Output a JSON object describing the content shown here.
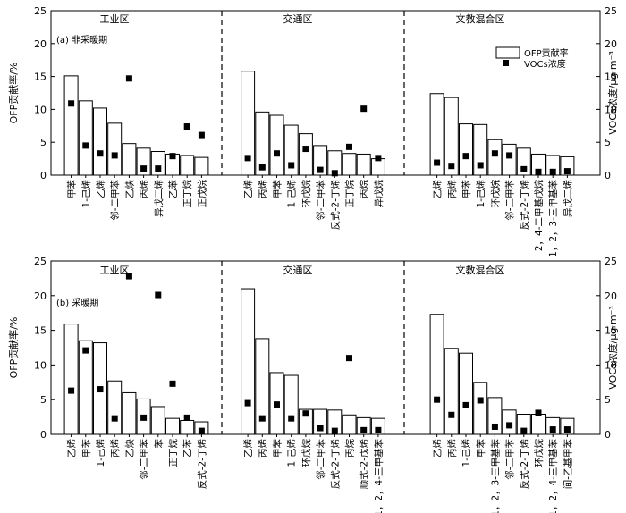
{
  "chart_data": [
    {
      "type": "bar",
      "panel_label": "(a) 非采暖期",
      "ylabel_left": "OFP贡献率/%",
      "ylabel_right": "VOCs浓度/μg·m⁻³",
      "ylim": [
        0,
        25
      ],
      "yticks": [
        0,
        5,
        10,
        15,
        20,
        25
      ],
      "legend": {
        "bar": "OFP贡献率",
        "marker": "VOCs浓度",
        "placement": "top-right"
      },
      "groups": [
        {
          "name": "工业区",
          "categories": [
            "甲苯",
            "1-己烯",
            "乙烯",
            "邻-二甲苯",
            "乙炔",
            "丙烯",
            "异戊二烯",
            "乙苯",
            "正丁烷",
            "正戊烷"
          ],
          "ofp": [
            15.1,
            11.3,
            10.2,
            7.9,
            4.8,
            4.1,
            3.6,
            3.2,
            3.0,
            2.7
          ],
          "conc": [
            10.9,
            4.5,
            3.3,
            3.0,
            14.7,
            1.0,
            1.0,
            2.9,
            7.4,
            6.1
          ]
        },
        {
          "name": "交通区",
          "categories": [
            "乙烯",
            "丙烯",
            "甲苯",
            "1-己烯",
            "环戊烷",
            "邻-二甲苯",
            "反式-2-丁烯",
            "正丁烷",
            "丙烷",
            "异戊烷"
          ],
          "ofp": [
            15.8,
            9.6,
            9.1,
            7.6,
            6.3,
            4.5,
            3.7,
            3.3,
            3.2,
            2.5
          ],
          "conc": [
            2.6,
            1.2,
            3.3,
            1.5,
            4.0,
            0.8,
            0.3,
            4.3,
            10.1,
            2.6
          ]
        },
        {
          "name": "文教混合区",
          "categories": [
            "乙烯",
            "丙烯",
            "甲苯",
            "1-己烯",
            "环戊烷",
            "邻-二甲苯",
            "反式-2-丁烯",
            "2，4-二甲基戊烷",
            "1，2，3-三甲基苯",
            "异戊二烯"
          ],
          "ofp": [
            12.4,
            11.8,
            7.8,
            7.7,
            5.4,
            4.7,
            4.1,
            3.2,
            3.0,
            2.8
          ],
          "conc": [
            1.9,
            1.4,
            2.9,
            1.5,
            3.3,
            3.0,
            0.9,
            0.5,
            0.5,
            0.6
          ]
        }
      ]
    },
    {
      "type": "bar",
      "panel_label": "(b) 采暖期",
      "ylabel_left": "OFP贡献率/%",
      "ylabel_right": "VOCs浓度/μg·m⁻³",
      "ylim": [
        0,
        25
      ],
      "yticks": [
        0,
        5,
        10,
        15,
        20,
        25
      ],
      "groups": [
        {
          "name": "工业区",
          "categories": [
            "乙烯",
            "甲苯",
            "1-己烯",
            "丙烯",
            "乙炔",
            "邻-二甲苯",
            "苯",
            "正丁烷",
            "乙苯",
            "反式-2-丁烯"
          ],
          "ofp": [
            15.9,
            13.5,
            13.2,
            7.7,
            6.0,
            5.1,
            4.0,
            2.3,
            2.0,
            1.8
          ],
          "conc": [
            6.3,
            12.1,
            6.5,
            2.3,
            22.8,
            2.4,
            20.1,
            7.3,
            2.4,
            0.5
          ]
        },
        {
          "name": "交通区",
          "categories": [
            "乙烯",
            "丙烯",
            "甲苯",
            "1-己烯",
            "环戊烷",
            "邻-二甲苯",
            "反式-2-丁烯",
            "丙烷",
            "顺式-2-戊烯",
            "1，2，4-三甲基苯"
          ],
          "ofp": [
            21.0,
            13.8,
            8.9,
            8.5,
            3.6,
            3.6,
            3.5,
            2.8,
            2.4,
            2.3
          ],
          "conc": [
            4.5,
            2.3,
            4.3,
            2.3,
            3.0,
            0.9,
            0.5,
            11.0,
            0.6,
            0.6
          ]
        },
        {
          "name": "文教混合区",
          "categories": [
            "乙烯",
            "丙烯",
            "1-己烯",
            "甲苯",
            "1，2，3-三甲基苯",
            "邻-二甲苯",
            "反式-2-丁烯",
            "环戊烷",
            "1，2，4-三甲基苯",
            "间-乙基甲苯"
          ],
          "ofp": [
            17.3,
            12.4,
            11.7,
            7.5,
            5.3,
            3.5,
            2.9,
            2.9,
            2.4,
            2.3
          ],
          "conc": [
            5.0,
            2.8,
            4.2,
            4.9,
            1.1,
            1.3,
            0.5,
            3.1,
            0.7,
            0.7
          ]
        }
      ]
    }
  ]
}
